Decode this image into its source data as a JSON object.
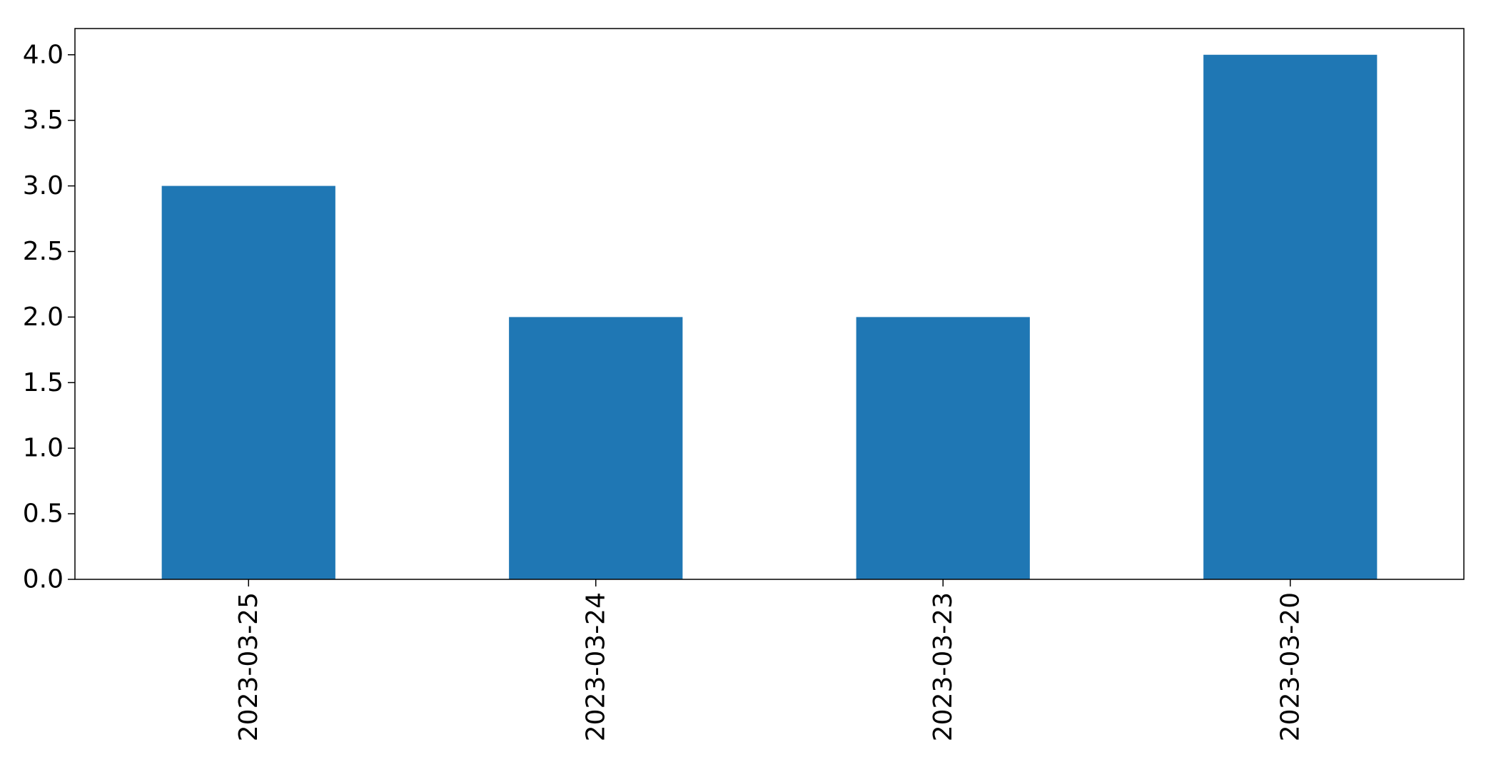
{
  "chart_data": {
    "type": "bar",
    "categories": [
      "2023-03-25",
      "2023-03-24",
      "2023-03-23",
      "2023-03-20"
    ],
    "values": [
      3,
      2,
      2,
      4
    ],
    "title": "",
    "xlabel": "",
    "ylabel": "",
    "ylim": [
      0,
      4.2
    ],
    "yticks": [
      "0.0",
      "0.5",
      "1.0",
      "1.5",
      "2.0",
      "2.5",
      "3.0",
      "3.5",
      "4.0"
    ],
    "grid": false,
    "bar_color": "#1f77b4"
  }
}
